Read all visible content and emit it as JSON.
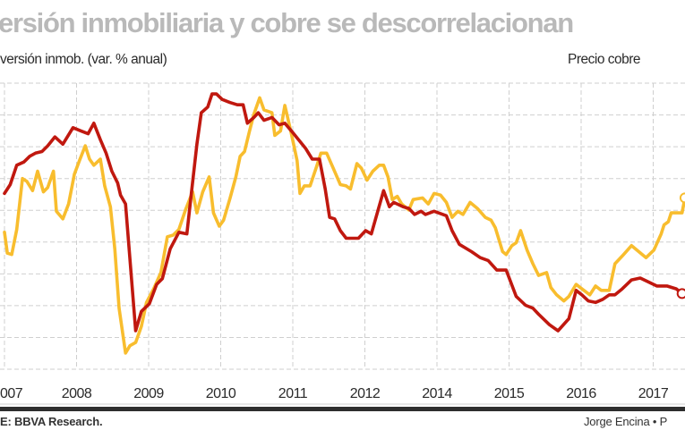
{
  "header": {
    "title": "ersión inmobiliaria y cobre se descorrelacionan",
    "left_axis_label": "versión inmob. (var. % anual)",
    "right_axis_label": "Precio cobre"
  },
  "footer": {
    "source": "E: BBVA Research.",
    "credit": "Jorge Encina • P"
  },
  "colors": {
    "investment_line": "#c0180f",
    "copper_line": "#f8bd2e",
    "grid": "#cfcfcf",
    "title": "#b9b9b9"
  },
  "chart_data": {
    "type": "line",
    "title": "ersión inmobiliaria y cobre se descorrelacionan",
    "xlabel": "",
    "ylabel_left": "versión inmob. (var. % anual)",
    "ylabel_right": "Precio cobre",
    "x_tick_labels": [
      "007",
      "2008",
      "2009",
      "2010",
      "2011",
      "2012",
      "2014",
      "2015",
      "2016",
      "2017"
    ],
    "x_units": "position along tick labels (0 = first tick)",
    "y_units": "gridline index (no y tick values printed)",
    "ylim": [
      0,
      9
    ],
    "xlim": [
      0,
      9.45
    ],
    "grid": true,
    "legend": "none",
    "series": [
      {
        "axis": "left",
        "color": "#c0180f",
        "end_marker": "open-circle",
        "points": [
          [
            0.0,
            5.53
          ],
          [
            0.08,
            5.81
          ],
          [
            0.17,
            6.42
          ],
          [
            0.27,
            6.52
          ],
          [
            0.35,
            6.7
          ],
          [
            0.43,
            6.8
          ],
          [
            0.52,
            6.85
          ],
          [
            0.6,
            7.03
          ],
          [
            0.7,
            7.31
          ],
          [
            0.81,
            7.08
          ],
          [
            0.95,
            7.6
          ],
          [
            1.06,
            7.5
          ],
          [
            1.16,
            7.41
          ],
          [
            1.24,
            7.74
          ],
          [
            1.33,
            7.22
          ],
          [
            1.41,
            6.8
          ],
          [
            1.49,
            6.23
          ],
          [
            1.57,
            5.86
          ],
          [
            1.61,
            5.48
          ],
          [
            1.68,
            5.2
          ],
          [
            1.82,
            1.21
          ],
          [
            1.9,
            1.82
          ],
          [
            2.01,
            2.06
          ],
          [
            2.11,
            2.67
          ],
          [
            2.19,
            2.85
          ],
          [
            2.3,
            3.79
          ],
          [
            2.42,
            4.31
          ],
          [
            2.53,
            4.26
          ],
          [
            2.59,
            5.48
          ],
          [
            2.67,
            7.08
          ],
          [
            2.73,
            8.07
          ],
          [
            2.82,
            8.25
          ],
          [
            2.88,
            8.66
          ],
          [
            2.94,
            8.66
          ],
          [
            3.02,
            8.49
          ],
          [
            3.13,
            8.39
          ],
          [
            3.23,
            8.32
          ],
          [
            3.31,
            8.32
          ],
          [
            3.37,
            7.74
          ],
          [
            3.46,
            7.92
          ],
          [
            3.52,
            8.07
          ],
          [
            3.6,
            7.83
          ],
          [
            3.71,
            7.92
          ],
          [
            3.81,
            7.69
          ],
          [
            3.89,
            7.74
          ],
          [
            3.98,
            7.5
          ],
          [
            4.08,
            7.22
          ],
          [
            4.18,
            6.94
          ],
          [
            4.27,
            6.61
          ],
          [
            4.37,
            6.61
          ],
          [
            4.45,
            5.67
          ],
          [
            4.51,
            4.78
          ],
          [
            4.58,
            4.73
          ],
          [
            4.66,
            4.36
          ],
          [
            4.74,
            4.12
          ],
          [
            4.91,
            4.12
          ],
          [
            5.01,
            4.36
          ],
          [
            5.09,
            4.26
          ],
          [
            5.26,
            5.62
          ],
          [
            5.34,
            5.11
          ],
          [
            5.4,
            5.25
          ],
          [
            5.53,
            5.11
          ],
          [
            5.61,
            5.06
          ],
          [
            5.69,
            4.87
          ],
          [
            5.78,
            4.97
          ],
          [
            5.84,
            4.87
          ],
          [
            5.96,
            4.97
          ],
          [
            6.13,
            4.83
          ],
          [
            6.21,
            4.36
          ],
          [
            6.31,
            3.93
          ],
          [
            6.48,
            3.7
          ],
          [
            6.6,
            3.51
          ],
          [
            6.71,
            3.42
          ],
          [
            6.83,
            3.12
          ],
          [
            6.96,
            3.12
          ],
          [
            7.1,
            2.29
          ],
          [
            7.23,
            2.01
          ],
          [
            7.33,
            1.92
          ],
          [
            7.41,
            1.73
          ],
          [
            7.56,
            1.4
          ],
          [
            7.68,
            1.21
          ],
          [
            7.83,
            1.59
          ],
          [
            7.93,
            2.48
          ],
          [
            8.01,
            2.34
          ],
          [
            8.1,
            2.15
          ],
          [
            8.2,
            2.1
          ],
          [
            8.3,
            2.2
          ],
          [
            8.39,
            2.34
          ],
          [
            8.47,
            2.34
          ],
          [
            8.57,
            2.53
          ],
          [
            8.7,
            2.81
          ],
          [
            8.82,
            2.87
          ],
          [
            8.92,
            2.76
          ],
          [
            9.05,
            2.62
          ],
          [
            9.19,
            2.62
          ],
          [
            9.32,
            2.53
          ],
          [
            9.4,
            2.38
          ]
        ]
      },
      {
        "axis": "right",
        "color": "#f8bd2e",
        "end_marker": "open-circle",
        "points": [
          [
            0.0,
            4.31
          ],
          [
            0.04,
            3.65
          ],
          [
            0.1,
            3.61
          ],
          [
            0.17,
            4.4
          ],
          [
            0.25,
            6.0
          ],
          [
            0.31,
            5.91
          ],
          [
            0.39,
            5.62
          ],
          [
            0.46,
            6.23
          ],
          [
            0.54,
            5.58
          ],
          [
            0.6,
            5.72
          ],
          [
            0.68,
            6.23
          ],
          [
            0.72,
            4.97
          ],
          [
            0.81,
            4.73
          ],
          [
            0.89,
            5.2
          ],
          [
            0.97,
            6.14
          ],
          [
            1.04,
            6.56
          ],
          [
            1.12,
            7.03
          ],
          [
            1.18,
            6.61
          ],
          [
            1.24,
            6.42
          ],
          [
            1.33,
            6.61
          ],
          [
            1.39,
            5.77
          ],
          [
            1.47,
            5.11
          ],
          [
            1.53,
            3.79
          ],
          [
            1.59,
            1.92
          ],
          [
            1.68,
            0.51
          ],
          [
            1.74,
            0.74
          ],
          [
            1.82,
            0.84
          ],
          [
            1.9,
            1.35
          ],
          [
            1.97,
            2.1
          ],
          [
            2.07,
            2.53
          ],
          [
            2.17,
            3.04
          ],
          [
            2.26,
            4.17
          ],
          [
            2.34,
            4.22
          ],
          [
            2.42,
            4.4
          ],
          [
            2.51,
            5.01
          ],
          [
            2.61,
            5.58
          ],
          [
            2.67,
            4.92
          ],
          [
            2.75,
            5.58
          ],
          [
            2.84,
            6.05
          ],
          [
            2.9,
            4.92
          ],
          [
            2.98,
            4.5
          ],
          [
            3.04,
            4.69
          ],
          [
            3.13,
            5.39
          ],
          [
            3.21,
            6.05
          ],
          [
            3.27,
            6.7
          ],
          [
            3.33,
            6.85
          ],
          [
            3.4,
            7.5
          ],
          [
            3.46,
            8.02
          ],
          [
            3.54,
            8.54
          ],
          [
            3.6,
            8.16
          ],
          [
            3.71,
            8.07
          ],
          [
            3.75,
            7.36
          ],
          [
            3.83,
            7.5
          ],
          [
            3.89,
            8.3
          ],
          [
            3.98,
            7.41
          ],
          [
            4.06,
            6.56
          ],
          [
            4.1,
            5.53
          ],
          [
            4.16,
            5.77
          ],
          [
            4.24,
            5.77
          ],
          [
            4.33,
            6.38
          ],
          [
            4.39,
            6.8
          ],
          [
            4.47,
            6.8
          ],
          [
            4.55,
            6.38
          ],
          [
            4.66,
            5.81
          ],
          [
            4.74,
            5.77
          ],
          [
            4.8,
            5.67
          ],
          [
            4.89,
            6.47
          ],
          [
            4.95,
            6.33
          ],
          [
            5.03,
            5.95
          ],
          [
            5.11,
            6.23
          ],
          [
            5.2,
            6.42
          ],
          [
            5.26,
            6.42
          ],
          [
            5.32,
            6.05
          ],
          [
            5.38,
            5.34
          ],
          [
            5.45,
            5.44
          ],
          [
            5.51,
            5.2
          ],
          [
            5.61,
            5.01
          ],
          [
            5.67,
            5.34
          ],
          [
            5.8,
            5.39
          ],
          [
            5.88,
            5.2
          ],
          [
            5.96,
            5.53
          ],
          [
            6.05,
            5.48
          ],
          [
            6.13,
            5.25
          ],
          [
            6.21,
            4.78
          ],
          [
            6.29,
            4.97
          ],
          [
            6.36,
            4.87
          ],
          [
            6.46,
            5.25
          ],
          [
            6.56,
            5.06
          ],
          [
            6.67,
            4.78
          ],
          [
            6.75,
            4.69
          ],
          [
            6.81,
            4.45
          ],
          [
            6.91,
            3.7
          ],
          [
            6.96,
            3.61
          ],
          [
            7.04,
            3.89
          ],
          [
            7.1,
            3.98
          ],
          [
            7.16,
            4.36
          ],
          [
            7.25,
            3.75
          ],
          [
            7.33,
            3.32
          ],
          [
            7.41,
            2.95
          ],
          [
            7.52,
            3.04
          ],
          [
            7.58,
            2.57
          ],
          [
            7.66,
            2.34
          ],
          [
            7.76,
            2.15
          ],
          [
            7.83,
            2.29
          ],
          [
            7.93,
            2.67
          ],
          [
            8.01,
            2.53
          ],
          [
            8.12,
            2.34
          ],
          [
            8.2,
            2.62
          ],
          [
            8.28,
            2.48
          ],
          [
            8.39,
            2.48
          ],
          [
            8.47,
            3.32
          ],
          [
            8.57,
            3.56
          ],
          [
            8.7,
            3.89
          ],
          [
            8.8,
            3.7
          ],
          [
            8.9,
            3.51
          ],
          [
            9.01,
            3.75
          ],
          [
            9.11,
            4.26
          ],
          [
            9.15,
            4.54
          ],
          [
            9.21,
            4.64
          ],
          [
            9.25,
            4.92
          ],
          [
            9.4,
            4.92
          ],
          [
            9.44,
            5.39
          ]
        ]
      }
    ]
  }
}
